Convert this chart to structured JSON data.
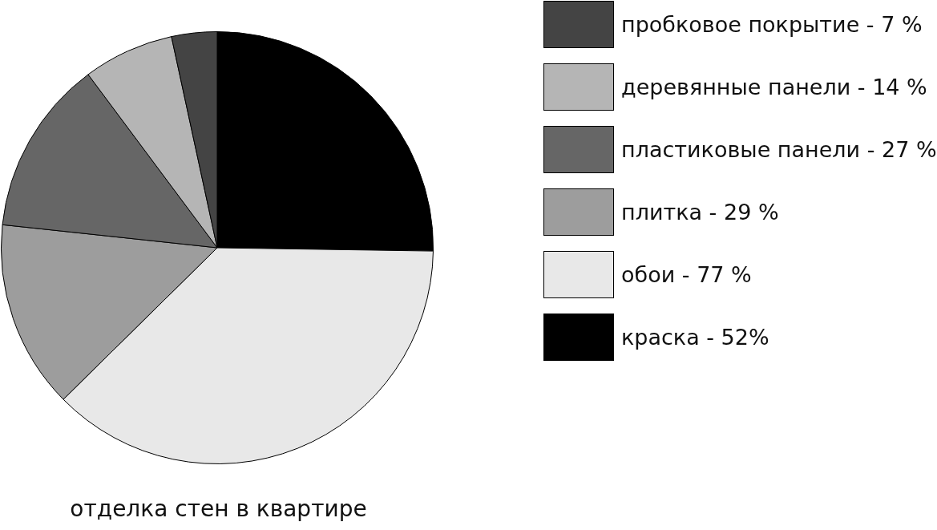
{
  "chart_data": {
    "type": "pie",
    "title": "отделка стен в квартире",
    "categories": [
      "пробковое покрытие",
      "деревянные панели",
      "пластиковые панели",
      "плитка",
      "обои",
      "краска"
    ],
    "values": [
      7,
      14,
      27,
      29,
      77,
      52
    ],
    "value_labels": [
      "7 %",
      "14 %",
      "27 %",
      "29 %",
      "77 %",
      "52%"
    ],
    "colors": [
      "#444444",
      "#b5b5b5",
      "#666666",
      "#9d9d9d",
      "#e8e8e8",
      "#000000"
    ],
    "legend": "right"
  }
}
